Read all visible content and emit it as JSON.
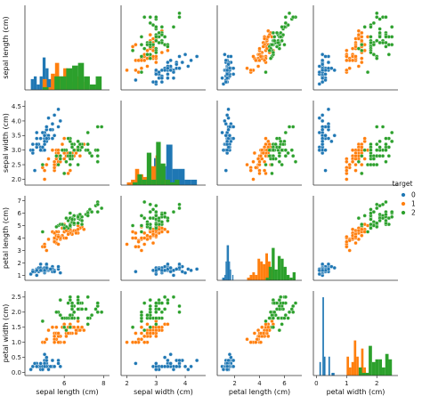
{
  "chart_data": {
    "type": "scatter",
    "variables": [
      "sepal length (cm)",
      "sepal width (cm)",
      "petal length (cm)",
      "petal width (cm)"
    ],
    "legend": {
      "title": "target",
      "placement": "center-right",
      "entries": [
        "0",
        "1",
        "2"
      ]
    },
    "colors": [
      "#1f77b4",
      "#ff7f0e",
      "#2ca02c"
    ],
    "ranges": [
      [
        4.0,
        8.3
      ],
      [
        1.8,
        4.7
      ],
      [
        0.6,
        7.4
      ],
      [
        -0.1,
        2.7
      ]
    ],
    "ticks": [
      [
        6,
        8
      ],
      [
        2.0,
        2.5,
        3.0,
        3.5,
        4.0,
        4.5
      ],
      [
        1,
        2,
        3,
        4,
        5,
        6,
        7
      ],
      [
        0.0,
        0.5,
        1.0,
        1.5,
        2.0,
        2.5
      ]
    ],
    "axis_ticks": {
      "y": [
        [],
        [
          2.0,
          2.5,
          3.0,
          3.5,
          4.0,
          4.5
        ],
        [
          1,
          2,
          3,
          4,
          5,
          6,
          7
        ],
        [
          0.0,
          0.5,
          1.0,
          1.5,
          2.0,
          2.5
        ]
      ],
      "x": [
        [
          6,
          8
        ],
        [
          2,
          3,
          4
        ],
        [
          2,
          4,
          6
        ],
        [
          0,
          1,
          2
        ]
      ]
    },
    "diagonal": "histogram",
    "series": [
      {
        "name": "0",
        "points": [
          [
            5.1,
            3.5,
            1.4,
            0.2
          ],
          [
            4.9,
            3.0,
            1.4,
            0.2
          ],
          [
            4.7,
            3.2,
            1.3,
            0.2
          ],
          [
            4.6,
            3.1,
            1.5,
            0.2
          ],
          [
            5.0,
            3.6,
            1.4,
            0.2
          ],
          [
            5.4,
            3.9,
            1.7,
            0.4
          ],
          [
            4.6,
            3.4,
            1.4,
            0.3
          ],
          [
            5.0,
            3.4,
            1.5,
            0.2
          ],
          [
            4.4,
            2.9,
            1.4,
            0.2
          ],
          [
            4.9,
            3.1,
            1.5,
            0.1
          ],
          [
            5.4,
            3.7,
            1.5,
            0.2
          ],
          [
            4.8,
            3.4,
            1.6,
            0.2
          ],
          [
            4.8,
            3.0,
            1.4,
            0.1
          ],
          [
            4.3,
            3.0,
            1.1,
            0.1
          ],
          [
            5.8,
            4.0,
            1.2,
            0.2
          ],
          [
            5.7,
            4.4,
            1.5,
            0.4
          ],
          [
            5.4,
            3.9,
            1.3,
            0.4
          ],
          [
            5.1,
            3.5,
            1.4,
            0.3
          ],
          [
            5.7,
            3.8,
            1.7,
            0.3
          ],
          [
            5.1,
            3.8,
            1.5,
            0.3
          ],
          [
            5.4,
            3.4,
            1.7,
            0.2
          ],
          [
            5.1,
            3.7,
            1.5,
            0.4
          ],
          [
            4.6,
            3.6,
            1.0,
            0.2
          ],
          [
            5.1,
            3.3,
            1.7,
            0.5
          ],
          [
            4.8,
            3.4,
            1.9,
            0.2
          ],
          [
            5.0,
            3.0,
            1.6,
            0.2
          ],
          [
            5.0,
            3.4,
            1.6,
            0.4
          ],
          [
            5.2,
            3.5,
            1.5,
            0.2
          ],
          [
            5.2,
            3.4,
            1.4,
            0.2
          ],
          [
            4.7,
            3.2,
            1.6,
            0.2
          ],
          [
            4.8,
            3.1,
            1.6,
            0.2
          ],
          [
            5.4,
            3.4,
            1.5,
            0.4
          ],
          [
            5.2,
            4.1,
            1.5,
            0.1
          ],
          [
            5.5,
            4.2,
            1.4,
            0.2
          ],
          [
            4.9,
            3.1,
            1.5,
            0.2
          ],
          [
            5.0,
            3.2,
            1.2,
            0.2
          ],
          [
            5.5,
            3.5,
            1.3,
            0.2
          ],
          [
            4.9,
            3.6,
            1.4,
            0.1
          ],
          [
            4.4,
            3.0,
            1.3,
            0.2
          ],
          [
            5.1,
            3.4,
            1.5,
            0.2
          ],
          [
            5.0,
            3.5,
            1.3,
            0.3
          ],
          [
            4.5,
            2.3,
            1.3,
            0.3
          ],
          [
            4.4,
            3.2,
            1.3,
            0.2
          ],
          [
            5.0,
            3.5,
            1.6,
            0.6
          ],
          [
            5.1,
            3.8,
            1.9,
            0.4
          ],
          [
            4.8,
            3.0,
            1.4,
            0.3
          ],
          [
            5.1,
            3.8,
            1.6,
            0.2
          ],
          [
            4.6,
            3.2,
            1.4,
            0.2
          ],
          [
            5.3,
            3.7,
            1.5,
            0.2
          ],
          [
            5.0,
            3.3,
            1.4,
            0.2
          ]
        ]
      },
      {
        "name": "1",
        "points": [
          [
            7.0,
            3.2,
            4.7,
            1.4
          ],
          [
            6.4,
            3.2,
            4.5,
            1.5
          ],
          [
            6.9,
            3.1,
            4.9,
            1.5
          ],
          [
            5.5,
            2.3,
            4.0,
            1.3
          ],
          [
            6.5,
            2.8,
            4.6,
            1.5
          ],
          [
            5.7,
            2.8,
            4.5,
            1.3
          ],
          [
            6.3,
            3.3,
            4.7,
            1.6
          ],
          [
            4.9,
            2.4,
            3.3,
            1.0
          ],
          [
            6.6,
            2.9,
            4.6,
            1.3
          ],
          [
            5.2,
            2.7,
            3.9,
            1.4
          ],
          [
            5.0,
            2.0,
            3.5,
            1.0
          ],
          [
            5.9,
            3.0,
            4.2,
            1.5
          ],
          [
            6.0,
            2.2,
            4.0,
            1.0
          ],
          [
            6.1,
            2.9,
            4.7,
            1.4
          ],
          [
            5.6,
            2.9,
            3.6,
            1.3
          ],
          [
            6.7,
            3.1,
            4.4,
            1.4
          ],
          [
            5.6,
            3.0,
            4.5,
            1.5
          ],
          [
            5.8,
            2.7,
            4.1,
            1.0
          ],
          [
            6.2,
            2.2,
            4.5,
            1.5
          ],
          [
            5.6,
            2.5,
            3.9,
            1.1
          ],
          [
            5.9,
            3.2,
            4.8,
            1.8
          ],
          [
            6.1,
            2.8,
            4.0,
            1.3
          ],
          [
            6.3,
            2.5,
            4.9,
            1.5
          ],
          [
            6.1,
            2.8,
            4.7,
            1.2
          ],
          [
            6.4,
            2.9,
            4.3,
            1.3
          ],
          [
            6.6,
            3.0,
            4.4,
            1.4
          ],
          [
            6.8,
            2.8,
            4.8,
            1.4
          ],
          [
            6.7,
            3.0,
            5.0,
            1.7
          ],
          [
            6.0,
            2.9,
            4.5,
            1.5
          ],
          [
            5.7,
            2.6,
            3.5,
            1.0
          ],
          [
            5.5,
            2.4,
            3.8,
            1.1
          ],
          [
            5.5,
            2.4,
            3.7,
            1.0
          ],
          [
            5.8,
            2.7,
            3.9,
            1.2
          ],
          [
            6.0,
            2.7,
            5.1,
            1.6
          ],
          [
            5.4,
            3.0,
            4.5,
            1.5
          ],
          [
            6.0,
            3.4,
            4.5,
            1.6
          ],
          [
            6.7,
            3.1,
            4.7,
            1.5
          ],
          [
            6.3,
            2.3,
            4.4,
            1.3
          ],
          [
            5.6,
            3.0,
            4.1,
            1.3
          ],
          [
            5.5,
            2.5,
            4.0,
            1.3
          ],
          [
            5.5,
            2.6,
            4.4,
            1.2
          ],
          [
            6.1,
            3.0,
            4.6,
            1.4
          ],
          [
            5.8,
            2.6,
            4.0,
            1.2
          ],
          [
            5.0,
            2.3,
            3.3,
            1.0
          ],
          [
            5.6,
            2.7,
            4.2,
            1.3
          ],
          [
            5.7,
            3.0,
            4.2,
            1.2
          ],
          [
            5.7,
            2.9,
            4.2,
            1.3
          ],
          [
            6.2,
            2.9,
            4.3,
            1.3
          ],
          [
            5.1,
            2.5,
            3.0,
            1.1
          ],
          [
            5.7,
            2.8,
            4.1,
            1.3
          ]
        ]
      },
      {
        "name": "2",
        "points": [
          [
            6.3,
            3.3,
            6.0,
            2.5
          ],
          [
            5.8,
            2.7,
            5.1,
            1.9
          ],
          [
            7.1,
            3.0,
            5.9,
            2.1
          ],
          [
            6.3,
            2.9,
            5.6,
            1.8
          ],
          [
            6.5,
            3.0,
            5.8,
            2.2
          ],
          [
            7.6,
            3.0,
            6.6,
            2.1
          ],
          [
            4.9,
            2.5,
            4.5,
            1.7
          ],
          [
            7.3,
            2.9,
            6.3,
            1.8
          ],
          [
            6.7,
            2.5,
            5.8,
            1.8
          ],
          [
            7.2,
            3.6,
            6.1,
            2.5
          ],
          [
            6.5,
            3.2,
            5.1,
            2.0
          ],
          [
            6.4,
            2.7,
            5.3,
            1.9
          ],
          [
            6.8,
            3.0,
            5.5,
            2.1
          ],
          [
            5.7,
            2.5,
            5.0,
            2.0
          ],
          [
            5.8,
            2.8,
            5.1,
            2.4
          ],
          [
            6.4,
            3.2,
            5.3,
            2.3
          ],
          [
            6.5,
            3.0,
            5.5,
            1.8
          ],
          [
            7.7,
            3.8,
            6.7,
            2.2
          ],
          [
            7.7,
            2.6,
            6.9,
            2.3
          ],
          [
            6.0,
            2.2,
            5.0,
            1.5
          ],
          [
            6.9,
            3.2,
            5.7,
            2.3
          ],
          [
            5.6,
            2.8,
            4.9,
            2.0
          ],
          [
            7.7,
            2.8,
            6.7,
            2.0
          ],
          [
            6.3,
            2.7,
            4.9,
            1.8
          ],
          [
            6.7,
            3.3,
            5.7,
            2.1
          ],
          [
            7.2,
            3.2,
            6.0,
            1.8
          ],
          [
            6.2,
            2.8,
            4.8,
            1.8
          ],
          [
            6.1,
            3.0,
            4.9,
            1.8
          ],
          [
            6.4,
            2.8,
            5.6,
            2.1
          ],
          [
            7.2,
            3.0,
            5.8,
            1.6
          ],
          [
            7.4,
            2.8,
            6.1,
            1.9
          ],
          [
            7.9,
            3.8,
            6.4,
            2.0
          ],
          [
            6.4,
            2.8,
            5.6,
            2.2
          ],
          [
            6.3,
            2.8,
            5.1,
            1.5
          ],
          [
            6.1,
            2.6,
            5.6,
            1.4
          ],
          [
            7.7,
            3.0,
            6.1,
            2.3
          ],
          [
            6.3,
            3.4,
            5.6,
            2.4
          ],
          [
            6.4,
            3.1,
            5.5,
            1.8
          ],
          [
            6.0,
            3.0,
            4.8,
            1.8
          ],
          [
            6.9,
            3.1,
            5.4,
            2.1
          ],
          [
            6.7,
            3.1,
            5.6,
            2.4
          ],
          [
            6.9,
            3.1,
            5.1,
            2.3
          ],
          [
            5.8,
            2.7,
            5.1,
            1.9
          ],
          [
            6.8,
            3.2,
            5.9,
            2.3
          ],
          [
            6.7,
            3.3,
            5.7,
            2.5
          ],
          [
            6.7,
            3.0,
            5.2,
            2.3
          ],
          [
            6.3,
            2.5,
            5.0,
            1.9
          ],
          [
            6.5,
            3.0,
            5.2,
            2.0
          ],
          [
            6.2,
            3.4,
            5.4,
            2.3
          ],
          [
            5.9,
            3.0,
            5.1,
            1.8
          ]
        ]
      }
    ]
  }
}
